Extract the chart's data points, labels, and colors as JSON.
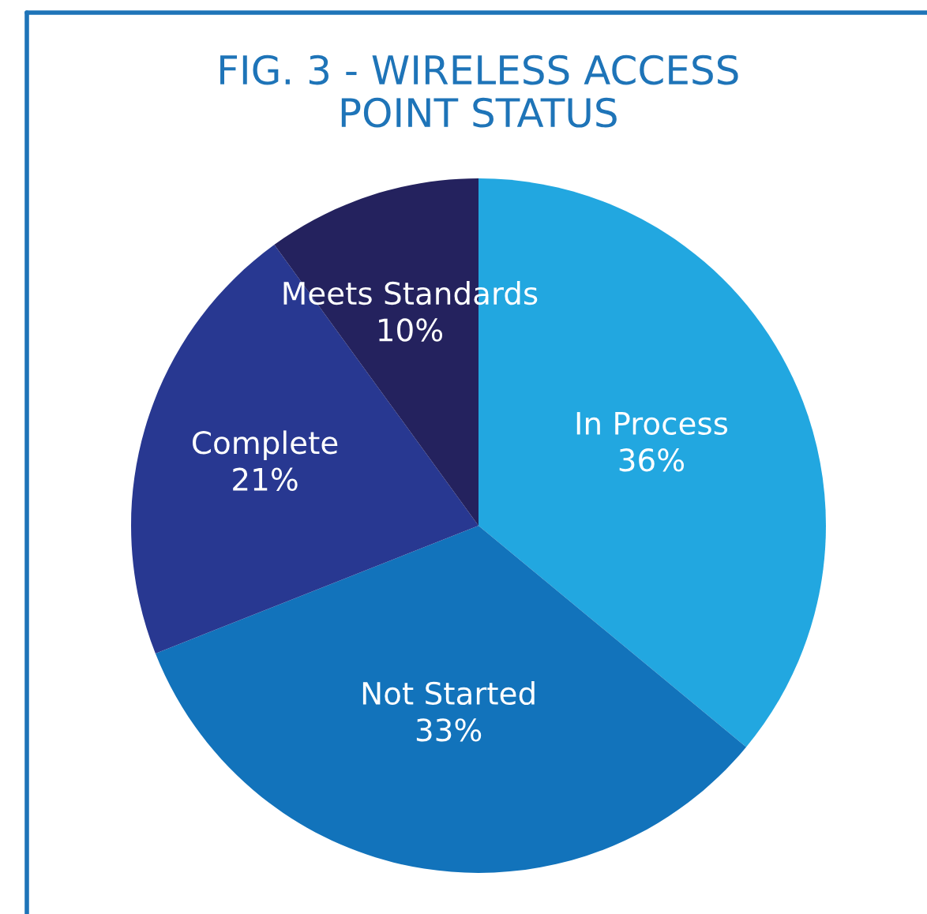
{
  "chart_data": {
    "type": "pie",
    "title": "FIG. 3 - WIRELESS ACCESS\nPOINT STATUS",
    "categories": [
      "In Process",
      "Not Started",
      "Complete",
      "Meets Standards"
    ],
    "values": [
      36,
      33,
      21,
      10
    ],
    "value_labels": [
      "36%",
      "33%",
      "21%",
      "10%"
    ],
    "colors": [
      "#22a7e0",
      "#1273bb",
      "#283891",
      "#24225e"
    ],
    "legend": false
  }
}
